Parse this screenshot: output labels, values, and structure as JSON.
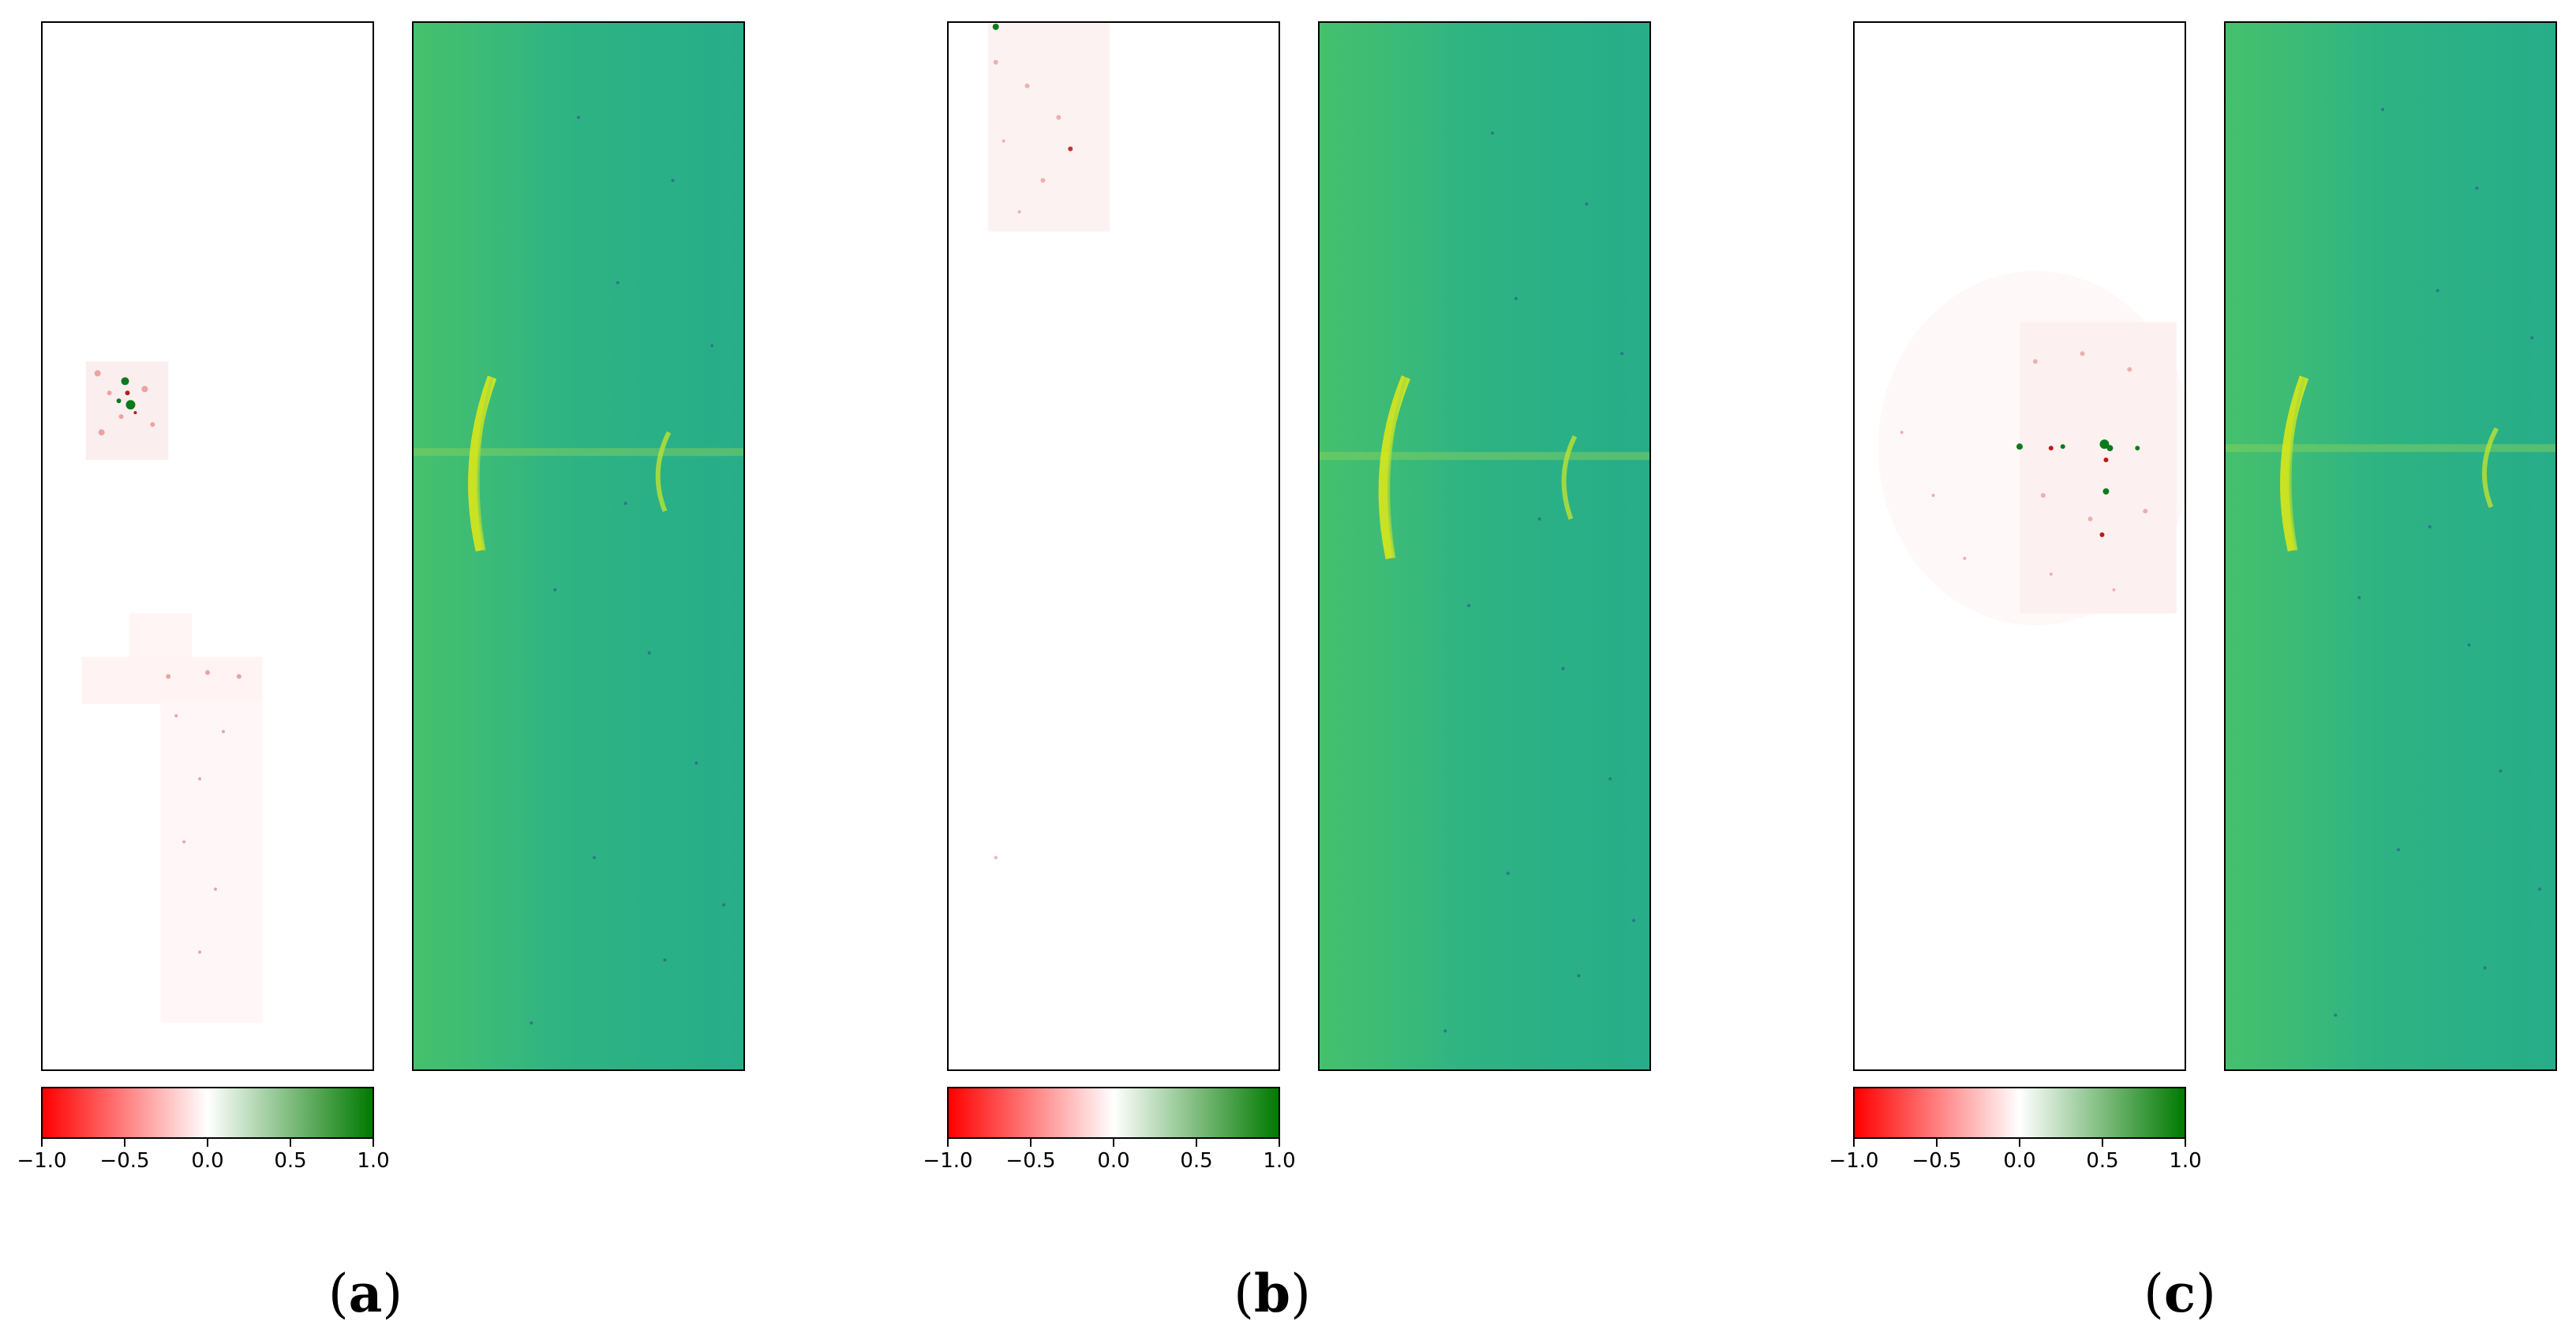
{
  "figure": {
    "colorbar": {
      "min": -1.0,
      "max": 1.0,
      "colors": [
        "#ff0000",
        "#ffffff",
        "#007a00"
      ],
      "ticks": [
        "−1.0",
        "−0.5",
        "0.0",
        "0.5",
        "1.0"
      ]
    },
    "spectrogram_colormap": {
      "background": [
        "#45c06c",
        "#2eb383",
        "#27ad88"
      ],
      "echo": "#d9e71c",
      "speckle": "#2c5f8a"
    },
    "panels": [
      {
        "caption_open": "(",
        "caption_letter": "a",
        "caption_close": ")"
      },
      {
        "caption_open": "(",
        "caption_letter": "b",
        "caption_close": ")"
      },
      {
        "caption_open": "(",
        "caption_letter": "c",
        "caption_close": ")"
      }
    ]
  }
}
